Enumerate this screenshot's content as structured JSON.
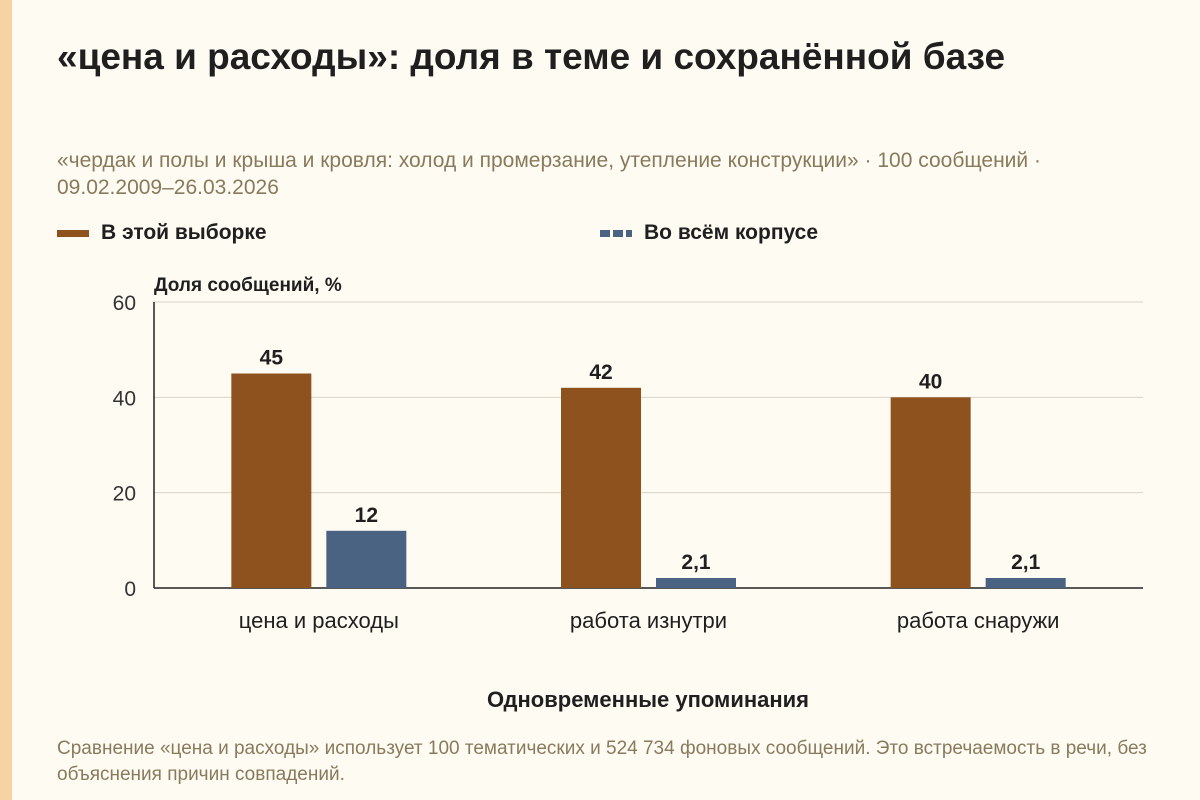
{
  "title": "«цена и расходы»: доля в теме и сохранённой базе",
  "subtitle": "«чердак и полы и крыша и кровля: холод и промерзание, утепление конструкции» · 100 сообщений · 09.02.2009–26.03.2026",
  "footnote": "Сравнение «цена и расходы» использует 100 тематических и 524 734 фоновых сообщений. Это встречаемость в речи, без объяснения причин совпадений.",
  "colors": {
    "sample": "#8e521e",
    "corpus": "#4a6382",
    "grid": "#d9d4c4",
    "axis": "#222222",
    "background": "#fdfbf2"
  },
  "chart_data": {
    "type": "bar",
    "ylabel": "Доля сообщений, %",
    "xlabel": "Одновременные упоминания",
    "ylim": [
      0,
      60
    ],
    "yticks": [
      0,
      20,
      40,
      60
    ],
    "grid": true,
    "legend_position": "top-left",
    "categories": [
      "цена и расходы",
      "работа изнутри",
      "работа снаружи"
    ],
    "series": [
      {
        "name": "В этой выборке",
        "values": [
          45,
          42,
          40
        ],
        "labels": [
          "45",
          "42",
          "40"
        ],
        "style": "solid"
      },
      {
        "name": "Во всём корпусе",
        "values": [
          12,
          2.1,
          2.1
        ],
        "labels": [
          "12",
          "2,1",
          "2,1"
        ],
        "style": "dashed"
      }
    ]
  }
}
